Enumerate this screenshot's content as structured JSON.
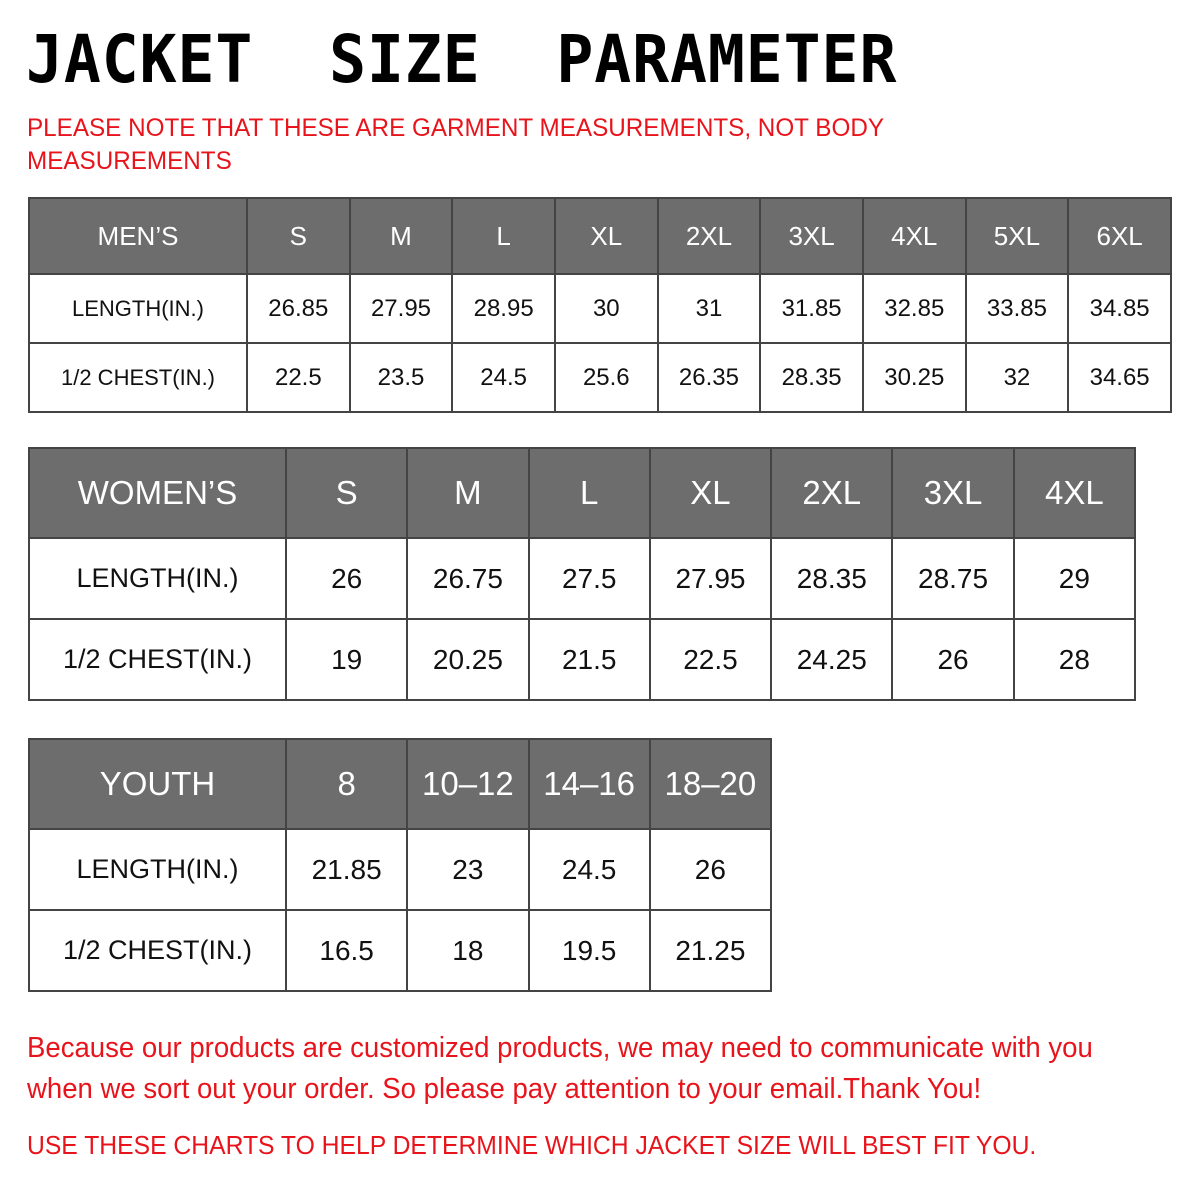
{
  "title": "JACKET  SIZE  PARAMETER",
  "note": "PLEASE NOTE THAT THESE ARE GARMENT MEASUREMENTS, NOT BODY MEASUREMENTS",
  "colors": {
    "header_bg": "#6d6d6d",
    "accent_red": "#e8141b"
  },
  "tables": [
    {
      "label": "MEN’S",
      "sizes": [
        "S",
        "M",
        "L",
        "XL",
        "2XL",
        "3XL",
        "4XL",
        "5XL",
        "6XL"
      ],
      "rows": [
        {
          "label": "LENGTH(IN.)",
          "values": [
            "26.85",
            "27.95",
            "28.95",
            "30",
            "31",
            "31.85",
            "32.85",
            "33.85",
            "34.85"
          ]
        },
        {
          "label": "1/2 CHEST(IN.)",
          "values": [
            "22.5",
            "23.5",
            "24.5",
            "25.6",
            "26.35",
            "28.35",
            "30.25",
            "32",
            "34.65"
          ]
        }
      ]
    },
    {
      "label": "WOMEN’S",
      "sizes": [
        "S",
        "M",
        "L",
        "XL",
        "2XL",
        "3XL",
        "4XL"
      ],
      "rows": [
        {
          "label": "LENGTH(IN.)",
          "values": [
            "26",
            "26.75",
            "27.5",
            "27.95",
            "28.35",
            "28.75",
            "29"
          ]
        },
        {
          "label": "1/2 CHEST(IN.)",
          "values": [
            "19",
            "20.25",
            "21.5",
            "22.5",
            "24.25",
            "26",
            "28"
          ]
        }
      ]
    },
    {
      "label": "YOUTH",
      "sizes": [
        "8",
        "10–12",
        "14–16",
        "18–20"
      ],
      "rows": [
        {
          "label": "LENGTH(IN.)",
          "values": [
            "21.85",
            "23",
            "24.5",
            "26"
          ]
        },
        {
          "label": "1/2 CHEST(IN.)",
          "values": [
            "16.5",
            "18",
            "19.5",
            "21.25"
          ]
        }
      ]
    }
  ],
  "message": "Because our products are customized products, we may need to communicate with you when we sort out your order. So please pay attention to your email.Thank You!",
  "footer": "USE THESE CHARTS TO HELP DETERMINE WHICH JACKET SIZE WILL BEST FIT YOU."
}
